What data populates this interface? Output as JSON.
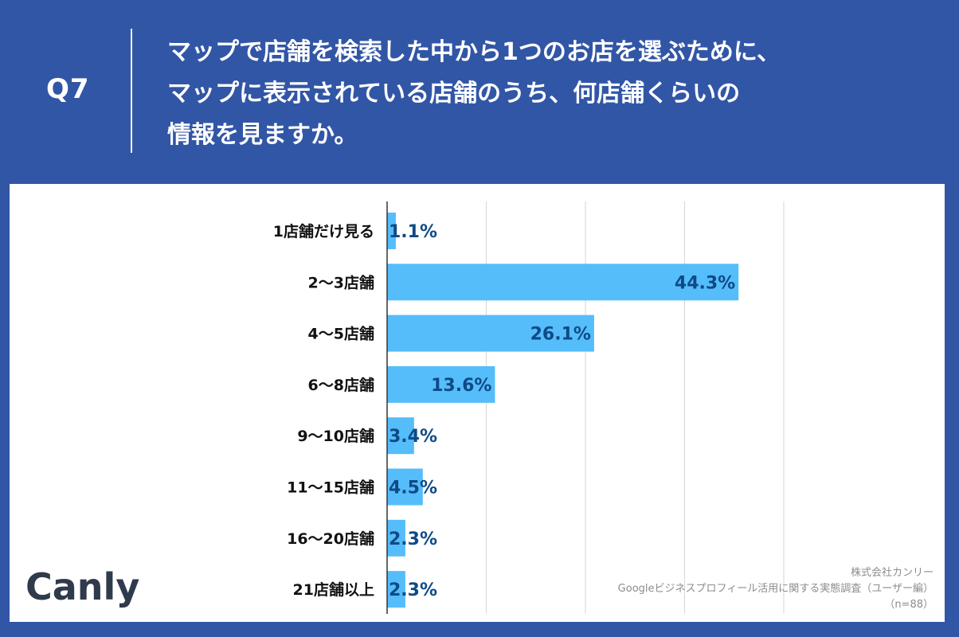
{
  "header": {
    "q_number": "Q7",
    "question_lines": [
      "マップで店舗を検索した中から1つのお店を選ぶために、",
      "マップに表示されている店舗のうち、何店舗くらいの",
      "情報を見ますか。"
    ]
  },
  "chart_data": {
    "type": "bar",
    "orientation": "horizontal",
    "title": "マップで店舗を検索した中から1つのお店を選ぶために、マップに表示されている店舗のうち、何店舗くらいの情報を見ますか。",
    "categories": [
      "1店舗だけ見る",
      "2〜3店舗",
      "4〜5店舗",
      "6〜8店舗",
      "9〜10店舗",
      "11〜15店舗",
      "16〜20店舗",
      "21店舗以上"
    ],
    "values": [
      1.1,
      44.3,
      26.1,
      13.6,
      3.4,
      4.5,
      2.3,
      2.3
    ],
    "value_labels": [
      "1.1%",
      "44.3%",
      "26.1%",
      "13.6%",
      "3.4%",
      "4.5%",
      "2.3%",
      "2.3%"
    ],
    "unit": "%",
    "xlim": [
      0,
      50
    ],
    "grid_step": 12.5,
    "bar_color": "#55bdfa",
    "label_color": "#0e4a86"
  },
  "footer": {
    "logo_text": "Canly",
    "source_lines": [
      "株式会社カンリー",
      "Googleビジネスプロフィール活用に関する実態調査（ユーザー編）",
      "（n=88）"
    ]
  }
}
